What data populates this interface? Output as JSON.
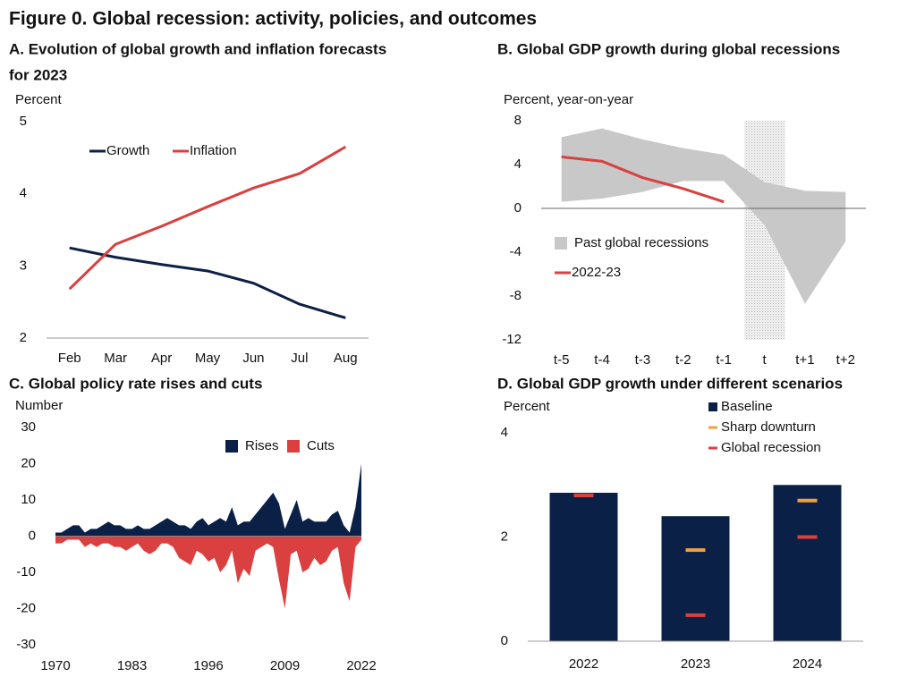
{
  "title": "Figure 0. Global recession: activity, policies, and outcomes",
  "chart_data": [
    {
      "type": "line",
      "title": [
        "A. Evolution of global growth and inflation forecasts",
        "for 2023"
      ],
      "y_label": "Percent",
      "categories": [
        "Feb",
        "Mar",
        "Apr",
        "May",
        "Jun",
        "Jul",
        "Aug"
      ],
      "series": [
        {
          "name": "Growth",
          "color": "#0b2046",
          "values": [
            3.25,
            3.12,
            3.02,
            2.93,
            2.76,
            2.47,
            2.28
          ]
        },
        {
          "name": "Inflation",
          "color": "#d9403f",
          "values": [
            2.68,
            3.3,
            3.55,
            3.82,
            4.08,
            4.28,
            4.65
          ]
        }
      ],
      "ylim": [
        2,
        5
      ],
      "yticks": [
        2,
        3,
        4,
        5
      ],
      "legend": "top"
    },
    {
      "type": "line",
      "title": [
        "B. Global GDP growth during global recessions"
      ],
      "y_label": "Percent, year-on-year",
      "categories": [
        "t-5",
        "t-4",
        "t-3",
        "t-2",
        "t-1",
        "t",
        "t+1",
        "t+2"
      ],
      "shaded_category": "t",
      "series": [
        {
          "name": "Past global recessions",
          "color": "#c8c8c8",
          "type": "band",
          "high": [
            6.5,
            7.3,
            6.3,
            5.5,
            4.9,
            2.4,
            1.6,
            1.5
          ],
          "low": [
            0.6,
            0.9,
            1.5,
            2.5,
            2.5,
            -1.5,
            -8.7,
            -3.0
          ]
        },
        {
          "name": "2022-23",
          "color": "#d9403f",
          "values": [
            4.7,
            4.3,
            2.8,
            1.8,
            0.6,
            null,
            null,
            null
          ]
        }
      ],
      "ylim": [
        -12,
        8
      ],
      "yticks": [
        -12,
        -8,
        -4,
        0,
        4,
        8
      ],
      "legend": "left"
    },
    {
      "type": "area",
      "title": [
        "C. Global policy rate rises and cuts"
      ],
      "y_label": "Number",
      "x": [
        1970,
        1971,
        1972,
        1973,
        1974,
        1975,
        1976,
        1977,
        1978,
        1979,
        1980,
        1981,
        1982,
        1983,
        1984,
        1985,
        1986,
        1987,
        1988,
        1989,
        1990,
        1991,
        1992,
        1993,
        1994,
        1995,
        1996,
        1997,
        1998,
        1999,
        2000,
        2001,
        2002,
        2003,
        2004,
        2005,
        2006,
        2007,
        2008,
        2009,
        2010,
        2011,
        2012,
        2013,
        2014,
        2015,
        2016,
        2017,
        2018,
        2019,
        2020,
        2021,
        2022
      ],
      "series": [
        {
          "name": "Rises",
          "color": "#0b2046",
          "values": [
            1,
            1,
            2,
            3,
            3,
            1,
            2,
            2,
            3,
            4,
            3,
            3,
            2,
            2,
            3,
            2,
            2,
            3,
            4,
            5,
            4,
            3,
            3,
            2,
            4,
            5,
            3,
            4,
            5,
            4,
            8,
            3,
            4,
            4,
            6,
            8,
            10,
            12,
            9,
            2,
            6,
            10,
            4,
            5,
            4,
            4,
            4,
            6,
            7,
            3,
            1,
            8,
            20
          ]
        },
        {
          "name": "Cuts",
          "color": "#d9403f",
          "values": [
            -2,
            -2,
            -1,
            -1,
            -1,
            -3,
            -2,
            -3,
            -2,
            -2,
            -3,
            -3,
            -4,
            -3,
            -2,
            -4,
            -5,
            -4,
            -2,
            -2,
            -3,
            -6,
            -7,
            -8,
            -4,
            -5,
            -7,
            -6,
            -10,
            -8,
            -4,
            -13,
            -9,
            -11,
            -4,
            -3,
            -2,
            -3,
            -12,
            -20,
            -5,
            -4,
            -10,
            -9,
            -6,
            -8,
            -7,
            -4,
            -3,
            -13,
            -18,
            -3,
            -1
          ]
        }
      ],
      "xlim": [
        1970,
        2022
      ],
      "xticks": [
        1970,
        1983,
        1996,
        2009,
        2022
      ],
      "ylim": [
        -30,
        30
      ],
      "yticks": [
        -30,
        -20,
        -10,
        0,
        10,
        20,
        30
      ],
      "legend": "top-right"
    },
    {
      "type": "bar",
      "title": [
        "D. Global GDP growth under different scenarios"
      ],
      "y_label": "Percent",
      "categories": [
        "2022",
        "2023",
        "2024"
      ],
      "series": [
        {
          "name": "Baseline",
          "color": "#0b2046",
          "values": [
            2.85,
            2.4,
            3.0
          ]
        },
        {
          "name": "Sharp downturn",
          "color": "#f0a03c",
          "type": "marker",
          "values": [
            2.8,
            1.75,
            2.7
          ]
        },
        {
          "name": "Global recession",
          "color": "#d9403f",
          "type": "marker",
          "values": [
            2.8,
            0.5,
            2.0
          ]
        }
      ],
      "ylim": [
        0,
        4
      ],
      "yticks": [
        0,
        2,
        4
      ],
      "legend": "top-right"
    }
  ]
}
